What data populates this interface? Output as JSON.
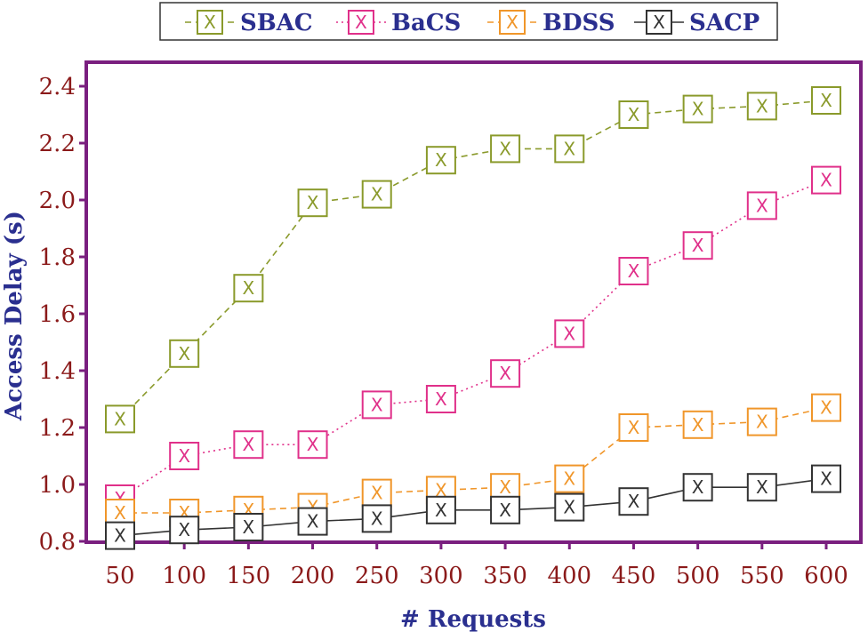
{
  "chart_data": {
    "type": "line",
    "xlabel": "# Requests",
    "ylabel": "Access Delay (s)",
    "x": [
      50,
      100,
      150,
      200,
      250,
      300,
      350,
      400,
      450,
      500,
      550,
      600
    ],
    "xticks": [
      "50",
      "100",
      "150",
      "200",
      "250",
      "300",
      "350",
      "400",
      "450",
      "500",
      "550",
      "600"
    ],
    "yticks": [
      "0.8",
      "1.0",
      "1.2",
      "1.4",
      "1.6",
      "1.8",
      "2.0",
      "2.2",
      "2.4"
    ],
    "ylim": [
      0.8,
      2.45
    ],
    "legend_position": "top",
    "marker_glyph": "X",
    "series": [
      {
        "name": "SBAC",
        "color": "#8a9a2b",
        "dash": "dashed",
        "values": [
          1.23,
          1.46,
          1.69,
          1.99,
          2.02,
          2.14,
          2.18,
          2.18,
          2.3,
          2.32,
          2.33,
          2.35
        ]
      },
      {
        "name": "BaCS",
        "color": "#e0308a",
        "dash": "dotted",
        "values": [
          0.95,
          1.1,
          1.14,
          1.14,
          1.28,
          1.3,
          1.39,
          1.53,
          1.75,
          1.84,
          1.98,
          2.07
        ]
      },
      {
        "name": "BDSS",
        "color": "#f0962a",
        "dash": "dashed",
        "values": [
          0.9,
          0.9,
          0.91,
          0.92,
          0.97,
          0.98,
          0.99,
          1.02,
          1.2,
          1.21,
          1.22,
          1.27
        ]
      },
      {
        "name": "SACP",
        "color": "#333333",
        "dash": "solid",
        "values": [
          0.82,
          0.84,
          0.85,
          0.87,
          0.88,
          0.91,
          0.91,
          0.92,
          0.94,
          0.99,
          0.99,
          1.02
        ]
      }
    ]
  }
}
